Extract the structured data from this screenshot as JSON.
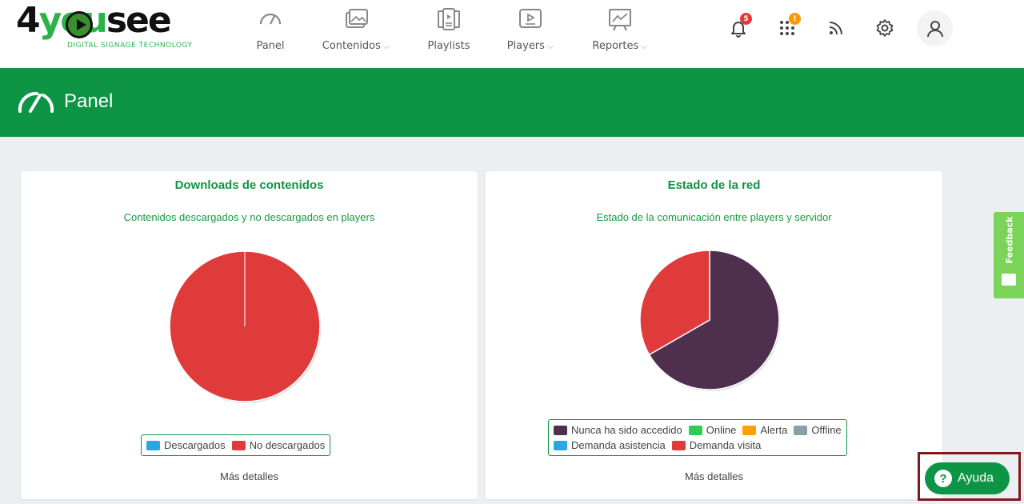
{
  "logo": {
    "prefix": "4",
    "middle": "you",
    "suffix": "see",
    "tagline": "DIGITAL SIGNAGE TECHNOLOGY"
  },
  "nav": [
    {
      "label": "Panel",
      "icon": "gauge-icon",
      "dropdown": false
    },
    {
      "label": "Contenidos",
      "icon": "images-icon",
      "dropdown": true
    },
    {
      "label": "Playlists",
      "icon": "playlist-icon",
      "dropdown": false
    },
    {
      "label": "Players",
      "icon": "player-icon",
      "dropdown": true
    },
    {
      "label": "Reportes",
      "icon": "report-icon",
      "dropdown": true
    }
  ],
  "top_icons": {
    "notifications_badge": "5",
    "apps_badge": "!",
    "icons": [
      "bell-icon",
      "apps-grid-icon",
      "rss-icon",
      "gear-icon",
      "user-icon"
    ]
  },
  "banner": {
    "title": "Panel",
    "color": "#0e9445"
  },
  "cards": [
    {
      "title": "Downloads de contenidos",
      "subtitle": "Contenidos descargados y no descargados en players",
      "more": "Más detalles"
    },
    {
      "title": "Estado de la red",
      "subtitle": "Estado de la comunicación entre players y servidor",
      "more": "Más detalles"
    }
  ],
  "chart_data": [
    {
      "type": "pie",
      "categories": [
        "Descargados",
        "No descargados"
      ],
      "values": [
        0,
        100
      ],
      "colors": [
        "#29a8e0",
        "#e03b3b"
      ],
      "legend": "bottom-center"
    },
    {
      "type": "pie",
      "categories": [
        "Nunca ha sido accedido",
        "Online",
        "Alerta",
        "Offline",
        "Demanda asistencia",
        "Demanda visita"
      ],
      "values": [
        66.7,
        0,
        0,
        0,
        0,
        33.3
      ],
      "colors": [
        "#4e2f4e",
        "#2ecc53",
        "#ffa000",
        "#8a9ea6",
        "#29a8e0",
        "#e03b3b"
      ],
      "legend": "bottom-center"
    }
  ],
  "feedback": {
    "label": "Feedback"
  },
  "help": {
    "label": "Ayuda"
  }
}
